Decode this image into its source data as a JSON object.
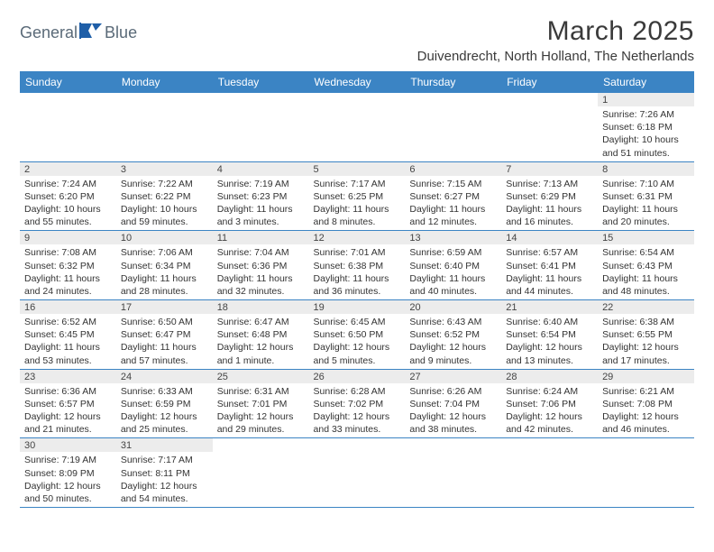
{
  "brand": {
    "name_part1": "General",
    "name_part2": "Blue"
  },
  "title": "March 2025",
  "location": "Duivendrecht, North Holland, The Netherlands",
  "colors": {
    "header_bg": "#3b84c4",
    "header_text": "#ffffff",
    "daynum_bg": "#ececec",
    "cell_border": "#3b84c4",
    "logo_text": "#5a6a78",
    "logo_shape": "#1f5fa8"
  },
  "weekdays": [
    "Sunday",
    "Monday",
    "Tuesday",
    "Wednesday",
    "Thursday",
    "Friday",
    "Saturday"
  ],
  "weeks": [
    [
      {
        "n": "",
        "sr": "",
        "ss": "",
        "dl": ""
      },
      {
        "n": "",
        "sr": "",
        "ss": "",
        "dl": ""
      },
      {
        "n": "",
        "sr": "",
        "ss": "",
        "dl": ""
      },
      {
        "n": "",
        "sr": "",
        "ss": "",
        "dl": ""
      },
      {
        "n": "",
        "sr": "",
        "ss": "",
        "dl": ""
      },
      {
        "n": "",
        "sr": "",
        "ss": "",
        "dl": ""
      },
      {
        "n": "1",
        "sr": "Sunrise: 7:26 AM",
        "ss": "Sunset: 6:18 PM",
        "dl": "Daylight: 10 hours and 51 minutes."
      }
    ],
    [
      {
        "n": "2",
        "sr": "Sunrise: 7:24 AM",
        "ss": "Sunset: 6:20 PM",
        "dl": "Daylight: 10 hours and 55 minutes."
      },
      {
        "n": "3",
        "sr": "Sunrise: 7:22 AM",
        "ss": "Sunset: 6:22 PM",
        "dl": "Daylight: 10 hours and 59 minutes."
      },
      {
        "n": "4",
        "sr": "Sunrise: 7:19 AM",
        "ss": "Sunset: 6:23 PM",
        "dl": "Daylight: 11 hours and 3 minutes."
      },
      {
        "n": "5",
        "sr": "Sunrise: 7:17 AM",
        "ss": "Sunset: 6:25 PM",
        "dl": "Daylight: 11 hours and 8 minutes."
      },
      {
        "n": "6",
        "sr": "Sunrise: 7:15 AM",
        "ss": "Sunset: 6:27 PM",
        "dl": "Daylight: 11 hours and 12 minutes."
      },
      {
        "n": "7",
        "sr": "Sunrise: 7:13 AM",
        "ss": "Sunset: 6:29 PM",
        "dl": "Daylight: 11 hours and 16 minutes."
      },
      {
        "n": "8",
        "sr": "Sunrise: 7:10 AM",
        "ss": "Sunset: 6:31 PM",
        "dl": "Daylight: 11 hours and 20 minutes."
      }
    ],
    [
      {
        "n": "9",
        "sr": "Sunrise: 7:08 AM",
        "ss": "Sunset: 6:32 PM",
        "dl": "Daylight: 11 hours and 24 minutes."
      },
      {
        "n": "10",
        "sr": "Sunrise: 7:06 AM",
        "ss": "Sunset: 6:34 PM",
        "dl": "Daylight: 11 hours and 28 minutes."
      },
      {
        "n": "11",
        "sr": "Sunrise: 7:04 AM",
        "ss": "Sunset: 6:36 PM",
        "dl": "Daylight: 11 hours and 32 minutes."
      },
      {
        "n": "12",
        "sr": "Sunrise: 7:01 AM",
        "ss": "Sunset: 6:38 PM",
        "dl": "Daylight: 11 hours and 36 minutes."
      },
      {
        "n": "13",
        "sr": "Sunrise: 6:59 AM",
        "ss": "Sunset: 6:40 PM",
        "dl": "Daylight: 11 hours and 40 minutes."
      },
      {
        "n": "14",
        "sr": "Sunrise: 6:57 AM",
        "ss": "Sunset: 6:41 PM",
        "dl": "Daylight: 11 hours and 44 minutes."
      },
      {
        "n": "15",
        "sr": "Sunrise: 6:54 AM",
        "ss": "Sunset: 6:43 PM",
        "dl": "Daylight: 11 hours and 48 minutes."
      }
    ],
    [
      {
        "n": "16",
        "sr": "Sunrise: 6:52 AM",
        "ss": "Sunset: 6:45 PM",
        "dl": "Daylight: 11 hours and 53 minutes."
      },
      {
        "n": "17",
        "sr": "Sunrise: 6:50 AM",
        "ss": "Sunset: 6:47 PM",
        "dl": "Daylight: 11 hours and 57 minutes."
      },
      {
        "n": "18",
        "sr": "Sunrise: 6:47 AM",
        "ss": "Sunset: 6:48 PM",
        "dl": "Daylight: 12 hours and 1 minute."
      },
      {
        "n": "19",
        "sr": "Sunrise: 6:45 AM",
        "ss": "Sunset: 6:50 PM",
        "dl": "Daylight: 12 hours and 5 minutes."
      },
      {
        "n": "20",
        "sr": "Sunrise: 6:43 AM",
        "ss": "Sunset: 6:52 PM",
        "dl": "Daylight: 12 hours and 9 minutes."
      },
      {
        "n": "21",
        "sr": "Sunrise: 6:40 AM",
        "ss": "Sunset: 6:54 PM",
        "dl": "Daylight: 12 hours and 13 minutes."
      },
      {
        "n": "22",
        "sr": "Sunrise: 6:38 AM",
        "ss": "Sunset: 6:55 PM",
        "dl": "Daylight: 12 hours and 17 minutes."
      }
    ],
    [
      {
        "n": "23",
        "sr": "Sunrise: 6:36 AM",
        "ss": "Sunset: 6:57 PM",
        "dl": "Daylight: 12 hours and 21 minutes."
      },
      {
        "n": "24",
        "sr": "Sunrise: 6:33 AM",
        "ss": "Sunset: 6:59 PM",
        "dl": "Daylight: 12 hours and 25 minutes."
      },
      {
        "n": "25",
        "sr": "Sunrise: 6:31 AM",
        "ss": "Sunset: 7:01 PM",
        "dl": "Daylight: 12 hours and 29 minutes."
      },
      {
        "n": "26",
        "sr": "Sunrise: 6:28 AM",
        "ss": "Sunset: 7:02 PM",
        "dl": "Daylight: 12 hours and 33 minutes."
      },
      {
        "n": "27",
        "sr": "Sunrise: 6:26 AM",
        "ss": "Sunset: 7:04 PM",
        "dl": "Daylight: 12 hours and 38 minutes."
      },
      {
        "n": "28",
        "sr": "Sunrise: 6:24 AM",
        "ss": "Sunset: 7:06 PM",
        "dl": "Daylight: 12 hours and 42 minutes."
      },
      {
        "n": "29",
        "sr": "Sunrise: 6:21 AM",
        "ss": "Sunset: 7:08 PM",
        "dl": "Daylight: 12 hours and 46 minutes."
      }
    ],
    [
      {
        "n": "30",
        "sr": "Sunrise: 7:19 AM",
        "ss": "Sunset: 8:09 PM",
        "dl": "Daylight: 12 hours and 50 minutes."
      },
      {
        "n": "31",
        "sr": "Sunrise: 7:17 AM",
        "ss": "Sunset: 8:11 PM",
        "dl": "Daylight: 12 hours and 54 minutes."
      },
      {
        "n": "",
        "sr": "",
        "ss": "",
        "dl": ""
      },
      {
        "n": "",
        "sr": "",
        "ss": "",
        "dl": ""
      },
      {
        "n": "",
        "sr": "",
        "ss": "",
        "dl": ""
      },
      {
        "n": "",
        "sr": "",
        "ss": "",
        "dl": ""
      },
      {
        "n": "",
        "sr": "",
        "ss": "",
        "dl": ""
      }
    ]
  ]
}
